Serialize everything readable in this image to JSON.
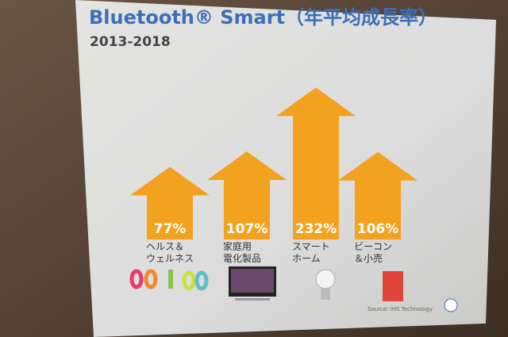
{
  "chart_data": {
    "type": "arrow",
    "title": "Bluetooth® Smart（年平均成長率）",
    "subtitle": "2013-2018",
    "categories": [
      "ヘルス＆\nウェルネス",
      "家庭用\n電化製品",
      "スマート\nホーム",
      "ビーコン\n＆小売"
    ],
    "values": [
      77,
      107,
      232,
      106
    ],
    "value_labels": [
      "77%",
      "107%",
      "232%",
      "106%"
    ],
    "color": "#f3a21f",
    "source": "Source: IHS Technology"
  }
}
